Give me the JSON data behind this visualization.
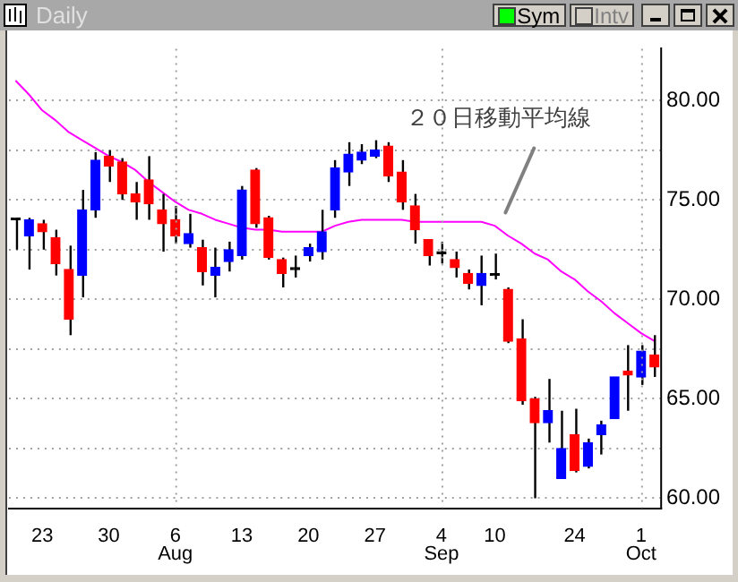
{
  "chart_data": {
    "type": "candlestick",
    "title": "Daily",
    "categories": [
      null,
      null,
      "23",
      null,
      null,
      null,
      null,
      "30",
      null,
      null,
      null,
      null,
      "6",
      null,
      null,
      null,
      null,
      "13",
      null,
      null,
      null,
      null,
      "20",
      null,
      null,
      null,
      null,
      "27",
      null,
      null,
      null,
      null,
      "4",
      null,
      null,
      null,
      "10",
      null,
      null,
      null,
      null,
      null,
      "24",
      null,
      null,
      null,
      null,
      "1",
      null
    ],
    "ohlc": [
      [
        74.0,
        74.1,
        72.5,
        74.0
      ],
      [
        73.2,
        74.1,
        71.5,
        74.0
      ],
      [
        73.8,
        74.0,
        72.5,
        73.4
      ],
      [
        73.1,
        73.5,
        71.2,
        71.8
      ],
      [
        71.5,
        72.7,
        68.2,
        69.0
      ],
      [
        71.2,
        75.5,
        70.1,
        74.5
      ],
      [
        74.5,
        77.4,
        74.1,
        77.0
      ],
      [
        77.2,
        77.5,
        75.9,
        76.7
      ],
      [
        76.9,
        77.1,
        75.0,
        75.3
      ],
      [
        75.3,
        75.9,
        74.0,
        74.9
      ],
      [
        76.0,
        77.2,
        74.0,
        74.8
      ],
      [
        74.5,
        75.3,
        72.4,
        73.8
      ],
      [
        74.0,
        74.7,
        72.8,
        73.2
      ],
      [
        72.8,
        74.3,
        72.6,
        73.3
      ],
      [
        72.6,
        73.0,
        70.7,
        71.4
      ],
      [
        71.2,
        72.6,
        70.1,
        71.6
      ],
      [
        71.9,
        72.9,
        71.4,
        72.5
      ],
      [
        72.2,
        75.7,
        72.0,
        75.5
      ],
      [
        76.5,
        76.6,
        73.6,
        73.8
      ],
      [
        74.1,
        74.2,
        72.0,
        72.1
      ],
      [
        72.0,
        72.1,
        70.6,
        71.3
      ],
      [
        71.5,
        72.2,
        71.1,
        71.5
      ],
      [
        72.2,
        72.8,
        71.9,
        72.6
      ],
      [
        72.4,
        74.5,
        72.0,
        73.4
      ],
      [
        74.5,
        77.0,
        74.1,
        76.6
      ],
      [
        76.4,
        77.9,
        75.7,
        77.3
      ],
      [
        77.0,
        77.8,
        76.8,
        77.4
      ],
      [
        77.2,
        78.0,
        77.1,
        77.5
      ],
      [
        77.7,
        77.9,
        75.9,
        76.2
      ],
      [
        76.4,
        77.0,
        74.5,
        74.9
      ],
      [
        74.7,
        75.3,
        72.8,
        73.5
      ],
      [
        73.0,
        73.0,
        71.7,
        72.2
      ],
      [
        72.3,
        72.9,
        71.8,
        72.3
      ],
      [
        72.0,
        72.4,
        71.1,
        71.6
      ],
      [
        71.3,
        71.5,
        70.5,
        70.8
      ],
      [
        70.7,
        72.2,
        69.7,
        71.3
      ],
      [
        71.2,
        72.3,
        71.0,
        71.2
      ],
      [
        70.5,
        70.6,
        67.8,
        67.9
      ],
      [
        68.0,
        69.0,
        64.7,
        64.9
      ],
      [
        65.0,
        65.1,
        60.0,
        63.8
      ],
      [
        63.8,
        66.0,
        62.8,
        64.4
      ],
      [
        61.0,
        64.4,
        61.0,
        62.5
      ],
      [
        63.2,
        64.5,
        61.3,
        61.4
      ],
      [
        61.6,
        63.0,
        61.5,
        62.8
      ],
      [
        63.2,
        63.9,
        62.2,
        63.7
      ],
      [
        64.0,
        66.1,
        64.0,
        66.1
      ],
      [
        66.4,
        67.7,
        64.4,
        66.2
      ],
      [
        66.1,
        67.7,
        65.7,
        67.4
      ],
      [
        67.2,
        68.2,
        66.1,
        66.6
      ]
    ],
    "colors": [
      "#000000",
      "#0000ff",
      "#ff0000",
      "#ff0000",
      "#ff0000",
      "#0000ff",
      "#0000ff",
      "#ff0000",
      "#ff0000",
      "#ff0000",
      "#ff0000",
      "#ff0000",
      "#ff0000",
      "#0000ff",
      "#ff0000",
      "#0000ff",
      "#0000ff",
      "#0000ff",
      "#ff0000",
      "#ff0000",
      "#ff0000",
      "#000000",
      "#0000ff",
      "#0000ff",
      "#0000ff",
      "#0000ff",
      "#0000ff",
      "#0000ff",
      "#ff0000",
      "#ff0000",
      "#ff0000",
      "#ff0000",
      "#000000",
      "#ff0000",
      "#ff0000",
      "#0000ff",
      "#000000",
      "#ff0000",
      "#ff0000",
      "#ff0000",
      "#0000ff",
      "#0000ff",
      "#ff0000",
      "#0000ff",
      "#0000ff",
      "#0000ff",
      "#ff0000",
      "#0000ff",
      "#ff0000"
    ],
    "series": [
      {
        "type": "line",
        "color": "#ff00ff",
        "values": [
          81.0,
          80.3,
          79.5,
          79.0,
          78.4,
          78.0,
          77.6,
          77.2,
          76.9,
          76.5,
          75.9,
          75.4,
          74.9,
          74.5,
          74.3,
          74.0,
          73.8,
          73.6,
          73.5,
          73.5,
          73.4,
          73.4,
          73.4,
          73.4,
          73.7,
          73.9,
          74.0,
          74.0,
          74.0,
          74.0,
          73.9,
          73.9,
          73.9,
          73.9,
          73.9,
          73.9,
          73.7,
          73.2,
          72.8,
          72.3,
          72.0,
          71.4,
          71.0,
          70.4,
          69.9,
          69.3,
          68.8,
          68.3,
          67.9
        ]
      }
    ],
    "ylim": [
      59.5,
      82.6
    ],
    "yticks": [
      {
        "value": 60,
        "label": "60.00"
      },
      {
        "value": 62.5,
        "label": null
      },
      {
        "value": 65,
        "label": "65.00"
      },
      {
        "value": 67.5,
        "label": null
      },
      {
        "value": 70,
        "label": "70.00"
      },
      {
        "value": 72.5,
        "label": null
      },
      {
        "value": 75,
        "label": "75.00"
      },
      {
        "value": 77.5,
        "label": null
      },
      {
        "value": 80,
        "label": "80.00"
      }
    ],
    "grid": true,
    "annotations": [
      "Sym",
      "Intv",
      {
        "text": "２０日移動平均線",
        "x": "10",
        "y": 74
      },
      "Aug",
      "Sep",
      "Oct"
    ]
  }
}
